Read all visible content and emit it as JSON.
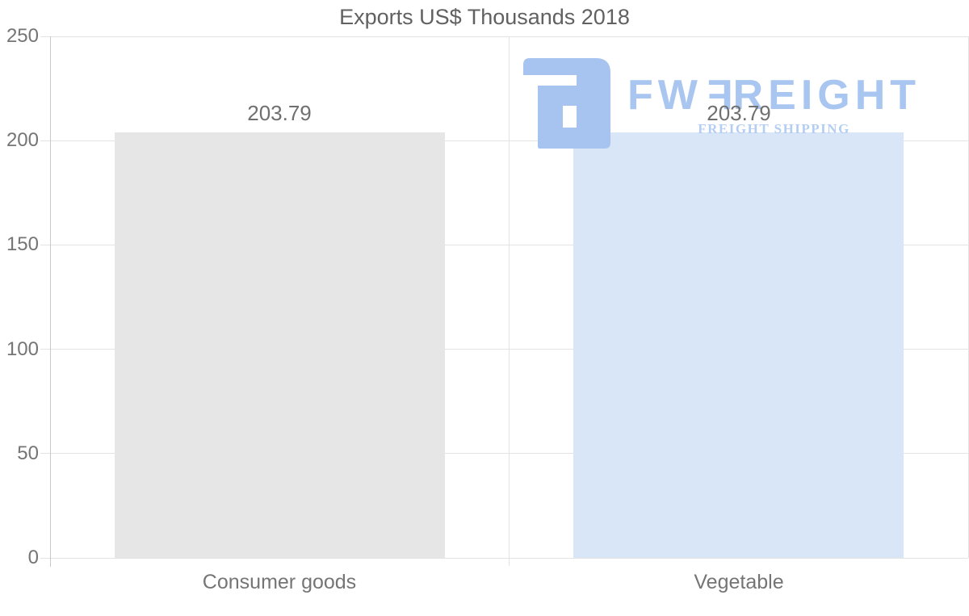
{
  "title": "Exports US$ Thousands 2018",
  "watermark": {
    "logo_icon": "fwfreight-mirrored-f-icon",
    "brand_prefix": "FW",
    "brand_flipped_letter": "F",
    "brand_suffix": "REIGHT",
    "subtitle": "FREIGHT SHIPPING",
    "logo_color": "#a7c4f0",
    "brand_text_color": "#a9c6f1",
    "subtitle_color": "#b4cdf2"
  },
  "colors": {
    "background": "#ffffff",
    "title_text": "#616161",
    "tick_text": "#757575",
    "value_label_text": "#6f6f6f",
    "gridline": "#e3e3e3",
    "axis_line": "#c9c9c9"
  },
  "chart_data": {
    "type": "bar",
    "title": "Exports US$ Thousands 2018",
    "categories": [
      "Consumer goods",
      "Vegetable"
    ],
    "values": [
      203.79,
      203.79
    ],
    "value_labels": [
      "203.79",
      "203.79"
    ],
    "bar_colors": [
      "#e6e6e6",
      "#d9e6f7"
    ],
    "xlabel": "",
    "ylabel": "",
    "ylim": [
      0,
      250
    ],
    "yticks": [
      0,
      50,
      100,
      150,
      200,
      250
    ],
    "grid": "horizontal",
    "legend": "none"
  }
}
